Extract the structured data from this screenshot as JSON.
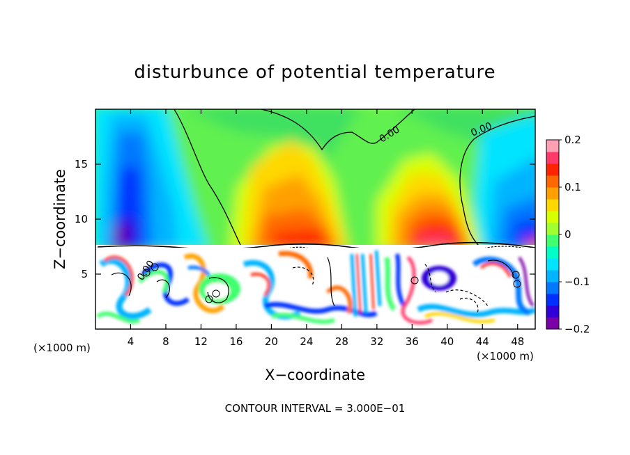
{
  "chart_data": {
    "type": "heatmap",
    "title": "disturbunce of potential temperature",
    "xlabel": "X−coordinate",
    "ylabel": "Z−coordinate",
    "x_unit_left": "(×1000 m)",
    "x_unit_right": "(×1000 m)",
    "x_ticks": [
      "4",
      "8",
      "12",
      "16",
      "20",
      "24",
      "28",
      "32",
      "36",
      "40",
      "44",
      "48"
    ],
    "x_tick_values": [
      4,
      8,
      12,
      16,
      20,
      24,
      28,
      32,
      36,
      40,
      44,
      48
    ],
    "y_ticks": [
      "5",
      "10",
      "15"
    ],
    "y_tick_values": [
      5,
      10,
      15
    ],
    "xlim": [
      0,
      50
    ],
    "ylim": [
      0,
      20
    ],
    "colorbar": {
      "ticks": [
        "0.2",
        "0.1",
        "0",
        "−0.1",
        "−0.2"
      ],
      "tick_values": [
        0.2,
        0.1,
        0,
        -0.1,
        -0.2
      ],
      "range": [
        -0.2,
        0.2
      ],
      "colors": [
        "#7b00a8",
        "#3000d8",
        "#0030ff",
        "#0078ff",
        "#00b4ff",
        "#00e4ff",
        "#00ffc8",
        "#40ff70",
        "#a0ff30",
        "#d8ff00",
        "#ffd800",
        "#ffa000",
        "#ff6800",
        "#ff2400",
        "#ff3a6a",
        "#ffa0b4"
      ]
    },
    "contour_labels": [
      "0.00",
      "0.00",
      "0.00"
    ],
    "contour_interval_text": "CONTOUR INTERVAL = 3.000E−01",
    "upper_field_peaks": [
      {
        "x": 3,
        "z": 11,
        "value": -0.2
      },
      {
        "x": 5,
        "z": 15,
        "value": -0.15
      },
      {
        "x": 23,
        "z": 9,
        "value": 0.14
      },
      {
        "x": 37,
        "z": 9,
        "value": 0.16
      },
      {
        "x": 30,
        "z": 14,
        "value": 0.02
      },
      {
        "x": 47,
        "z": 11,
        "value": -0.15
      }
    ]
  }
}
